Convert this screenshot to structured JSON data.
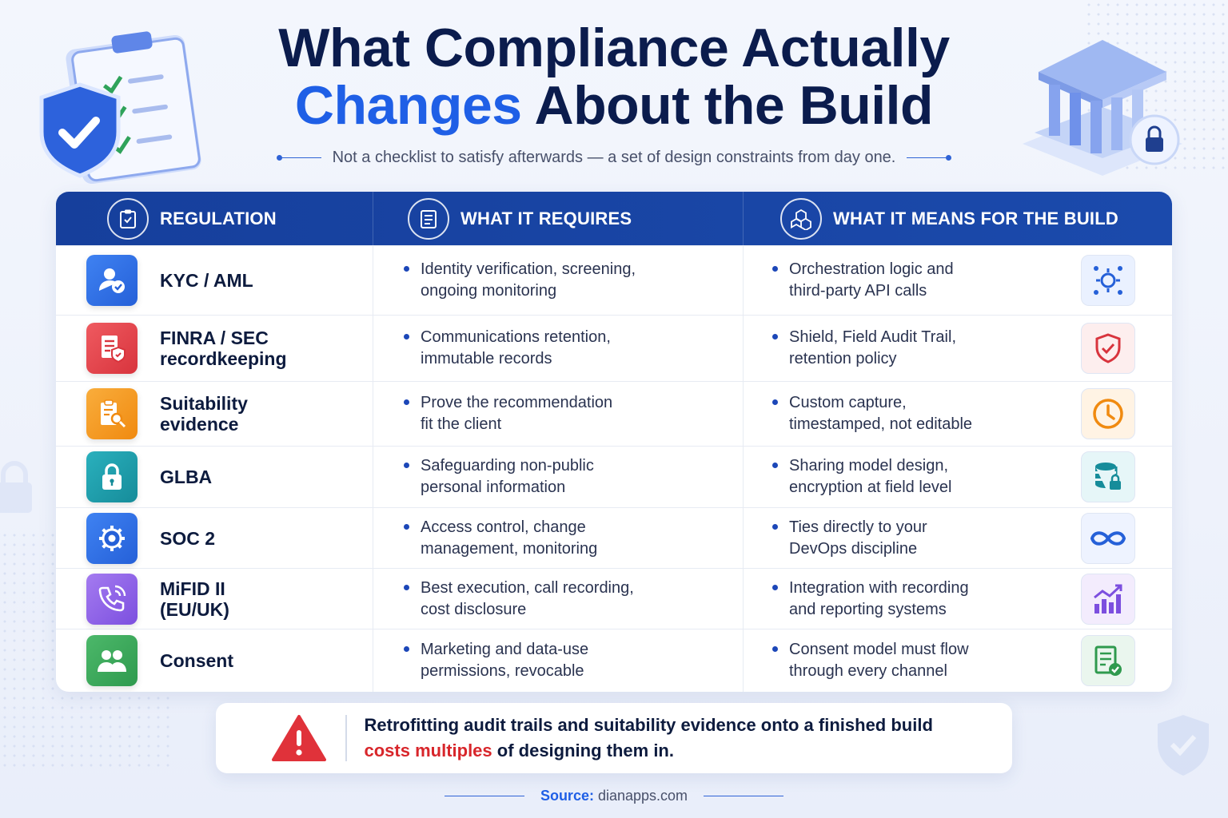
{
  "header": {
    "title_line1": "What Compliance Actually",
    "title_accent": "Changes",
    "title_line2_rest": "About the Build",
    "subtitle": "Not a checklist to satisfy afterwards — a set of design constraints from day one."
  },
  "table": {
    "columns": [
      "REGULATION",
      "WHAT IT REQUIRES",
      "WHAT IT MEANS FOR THE BUILD"
    ],
    "rows": [
      {
        "regulation": "KYC / AML",
        "requires": "Identity verification, screening,\nongoing monitoring",
        "build": "Orchestration logic and\nthird-party API calls",
        "reg_icon": "user-check-icon",
        "reg_color": "#2f6fe4",
        "build_icon": "gear-network-icon"
      },
      {
        "regulation": "FINRA / SEC\nrecordkeeping",
        "requires": "Communications retention,\nimmutable records",
        "build": "Shield, Field Audit Trail,\nretention policy",
        "reg_icon": "document-shield-icon",
        "reg_color": "#e0444f",
        "build_icon": "shield-check-icon"
      },
      {
        "regulation": "Suitability\nevidence",
        "requires": "Prove the recommendation\nfit the client",
        "build": "Custom capture,\ntimestamped, not editable",
        "reg_icon": "clipboard-search-icon",
        "reg_color": "#f39a1e",
        "build_icon": "clock-icon"
      },
      {
        "regulation": "GLBA",
        "requires": "Safeguarding non-public\npersonal information",
        "build": "Sharing model design,\nencryption at field level",
        "reg_icon": "lock-icon",
        "reg_color": "#1f9aa8",
        "build_icon": "database-lock-icon"
      },
      {
        "regulation": "SOC 2",
        "requires": "Access control, change\nmanagement, monitoring",
        "build": "Ties directly to your\nDevOps discipline",
        "reg_icon": "gear-icon",
        "reg_color": "#2f6fe4",
        "build_icon": "infinity-icon"
      },
      {
        "regulation": "MiFID II\n(EU/UK)",
        "requires": "Best execution, call recording,\ncost disclosure",
        "build": "Integration with recording\nand reporting systems",
        "reg_icon": "phone-icon",
        "reg_color": "#8a5ce6",
        "build_icon": "chart-up-icon"
      },
      {
        "regulation": "Consent",
        "requires": "Marketing and data-use\npermissions, revocable",
        "build": "Consent model must flow\nthrough every channel",
        "reg_icon": "users-icon",
        "reg_color": "#3aa55a",
        "build_icon": "document-check-icon"
      }
    ]
  },
  "callout": {
    "line1": "Retrofitting audit trails and suitability evidence onto a finished build",
    "highlight": "costs multiples",
    "line2_rest": " of designing them in."
  },
  "source": {
    "label": "Source:",
    "value": " dianapps.com"
  },
  "colors": {
    "accent": "#1f5fe6",
    "header_bg": "#163f9c",
    "warning": "#d8262b"
  }
}
